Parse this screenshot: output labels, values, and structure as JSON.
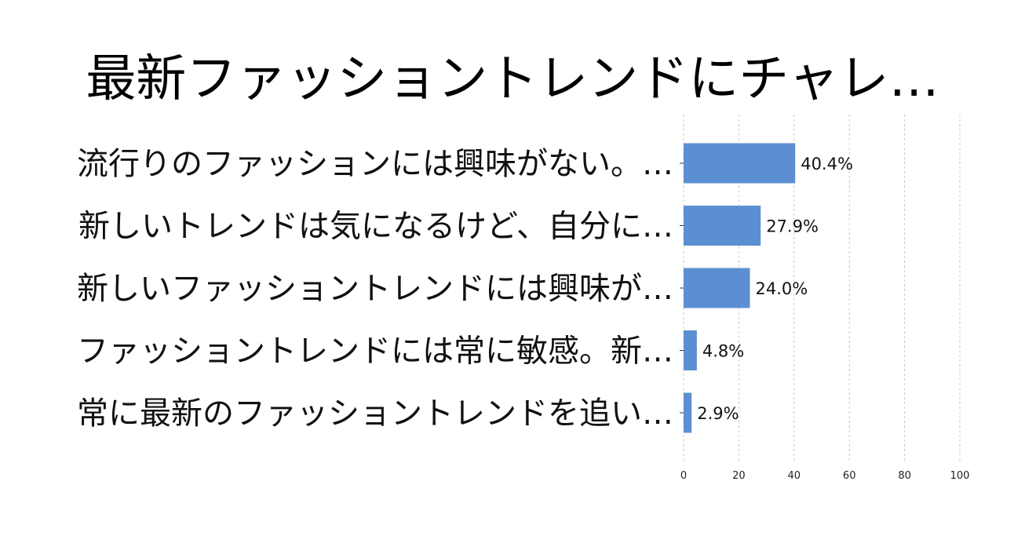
{
  "chart_data": {
    "type": "bar",
    "orientation": "horizontal",
    "title": "最新ファッショントレンドにチャレ…",
    "categories": [
      "流行りのファッションには興味がない。…",
      "新しいトレンドは気になるけど、自分に…",
      "新しいファッショントレンドには興味が…",
      "ファッショントレンドには常に敏感。新…",
      "常に最新のファッショントレンドを追い…"
    ],
    "values": [
      40.4,
      27.9,
      24.0,
      4.8,
      2.9
    ],
    "value_labels": [
      "40.4%",
      "27.9%",
      "24.0%",
      "4.8%",
      "2.9%"
    ],
    "xlim": [
      0,
      100
    ],
    "xticks": [
      0,
      20,
      40,
      60,
      80,
      100
    ],
    "xtick_labels": [
      "0",
      "20",
      "40",
      "60",
      "80",
      "100"
    ],
    "bar_color": "#5b8fd2",
    "grid": true,
    "grid_axis": "x",
    "legend": false
  }
}
